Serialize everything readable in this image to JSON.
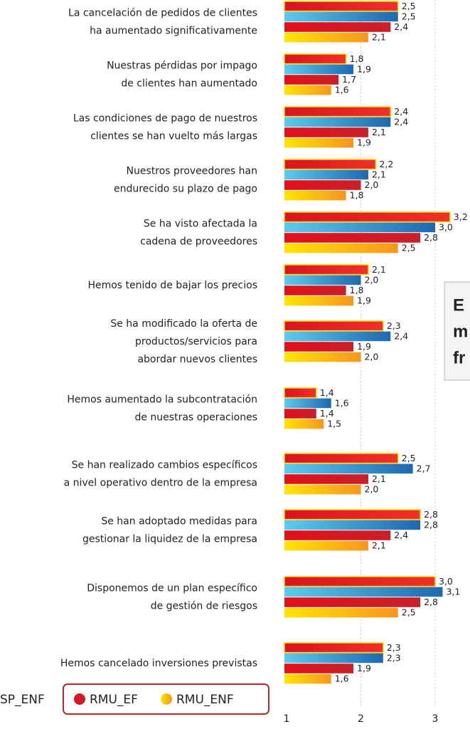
{
  "chart_data": {
    "type": "barh",
    "categories": [
      [
        "La cancelación de pedidos de clientes",
        "ha aumentado significativamente"
      ],
      [
        "Nuestras pérdidas por impago",
        "de clientes han aumentado"
      ],
      [
        "Las condiciones de pago de nuestros",
        "clientes se han vuelto más largas"
      ],
      [
        "Nuestros proveedores han",
        "endurecido su plazo de pago"
      ],
      [
        "Se ha visto afectada la",
        "cadena de proveedores"
      ],
      [
        "Hemos tenido de bajar los precios"
      ],
      [
        "Se ha modificado la oferta de",
        "productos/servicios para",
        "abordar nuevos clientes"
      ],
      [
        "Hemos aumentado la subcontratación",
        "de nuestras operaciones"
      ],
      [
        "Se han realizado cambios específicos",
        "a nivel operativo dentro de la empresa"
      ],
      [
        "Se han adoptado medidas para",
        "gestionar la liquidez de la empresa"
      ],
      [
        "Disponemos de un plan específico",
        "de gestión de riesgos"
      ],
      [
        "Hemos cancelado inversiones previstas"
      ]
    ],
    "series": [
      {
        "color": "#e5202a",
        "values": [
          2.5,
          1.8,
          2.4,
          2.2,
          3.2,
          2.1,
          2.3,
          1.4,
          2.5,
          2.8,
          3.0,
          2.3
        ],
        "value_labels": [
          "2,5",
          "1,8",
          "2,4",
          "2,2",
          "3,2",
          "2,1",
          "2,3",
          "1,4",
          "2,5",
          "2,8",
          "3,0",
          "2,3"
        ]
      },
      {
        "name": "SP_ENF",
        "color": "#2f8fd0",
        "values": [
          2.5,
          1.9,
          2.4,
          2.1,
          3.0,
          2.0,
          2.4,
          1.6,
          2.7,
          2.8,
          3.1,
          2.3
        ],
        "value_labels": [
          "2,5",
          "1,9",
          "2,4",
          "2,1",
          "3,0",
          "2,0",
          "2,4",
          "1,6",
          "2,7",
          "2,8",
          "3,1",
          "2,3"
        ]
      },
      {
        "name": "RMU_EF",
        "color": "#e21f26",
        "values": [
          2.4,
          1.7,
          2.1,
          2.0,
          2.8,
          1.8,
          1.9,
          1.4,
          2.1,
          2.4,
          2.8,
          1.9
        ],
        "value_labels": [
          "2,4",
          "1,7",
          "2,1",
          "2,0",
          "2,8",
          "1,8",
          "1,9",
          "1,4",
          "2,1",
          "2,4",
          "2,8",
          "1,9"
        ]
      },
      {
        "name": "RMU_ENF",
        "color": "#ffc20e",
        "values": [
          2.1,
          1.6,
          1.9,
          1.8,
          2.5,
          1.9,
          2.0,
          1.5,
          2.0,
          2.1,
          2.5,
          1.6
        ],
        "value_labels": [
          "2,1",
          "1,6",
          "1,9",
          "1,8",
          "2,5",
          "1,9",
          "2,0",
          "1,5",
          "2,0",
          "2,1",
          "2,5",
          "1,6"
        ]
      }
    ],
    "xlim": [
      1,
      3.47
    ],
    "xticks": [
      1,
      2,
      3
    ],
    "grid": true,
    "annotation": [
      "E",
      "m",
      "fr"
    ]
  }
}
